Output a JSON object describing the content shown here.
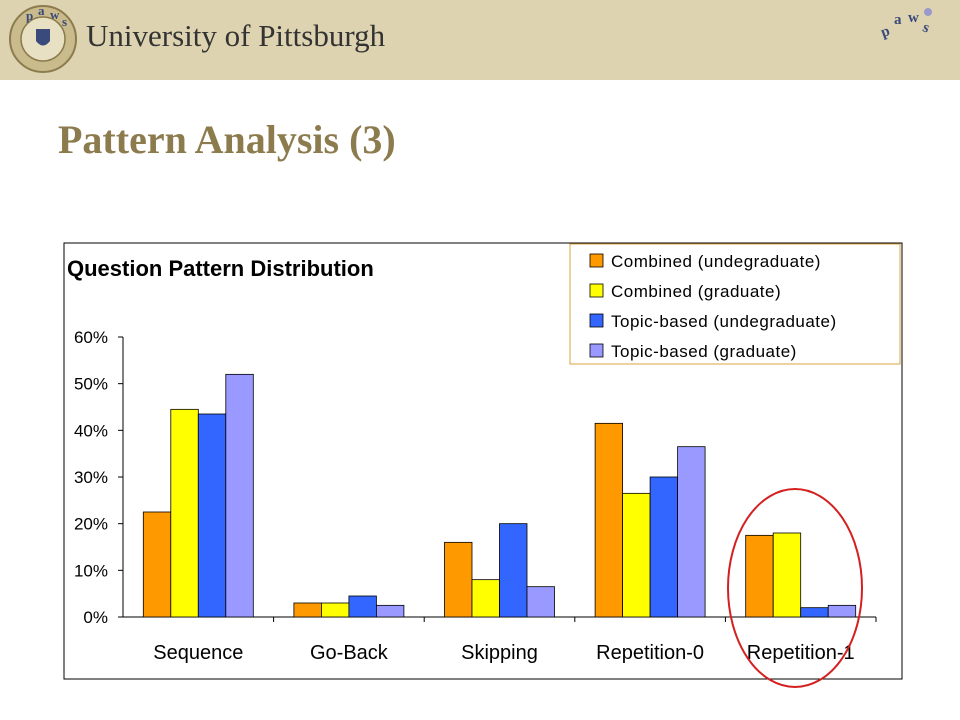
{
  "header": {
    "university_name": "University of Pittsburgh",
    "logo_text": "paws"
  },
  "slide": {
    "title": "Pattern Analysis (3)"
  },
  "colors": {
    "header_band": "#ddd3b0",
    "title": "#8c7b4d",
    "highlight_circle": "#d42020"
  },
  "chart_data": {
    "type": "bar",
    "title": "Question Pattern Distribution",
    "categories": [
      "Sequence",
      "Go-Back",
      "Skipping",
      "Repetition-0",
      "Repetition-1"
    ],
    "series": [
      {
        "name": "Combined (undegraduate)",
        "color": "#ff9900",
        "values": [
          22.5,
          3,
          16,
          41.5,
          17.5
        ]
      },
      {
        "name": "Combined (graduate)",
        "color": "#ffff00",
        "values": [
          44.5,
          3,
          8,
          26.5,
          18
        ]
      },
      {
        "name": "Topic-based (undegraduate)",
        "color": "#3366ff",
        "values": [
          43.5,
          4.5,
          20,
          30,
          2
        ]
      },
      {
        "name": "Topic-based (graduate)",
        "color": "#9999ff",
        "values": [
          52,
          2.5,
          6.5,
          36.5,
          2.5
        ]
      }
    ],
    "ylim": [
      0,
      60
    ],
    "yticks": [
      "0%",
      "10%",
      "20%",
      "30%",
      "40%",
      "50%",
      "60%"
    ],
    "xlabel": "",
    "ylabel": "",
    "legend_position": "top-right",
    "grid": false,
    "highlighted_category": "Repetition-1"
  }
}
